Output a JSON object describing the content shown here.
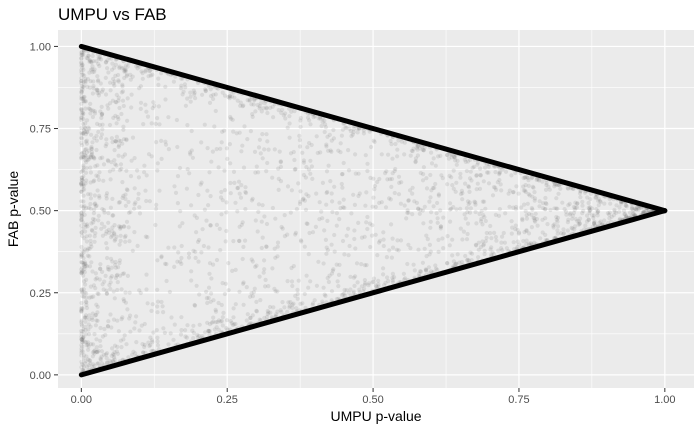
{
  "chart_data": {
    "type": "scatter",
    "title": "UMPU vs FAB",
    "xlabel": "UMPU p-value",
    "ylabel": "FAB p-value",
    "xlim": [
      -0.04,
      1.05
    ],
    "ylim": [
      -0.04,
      1.05
    ],
    "x_ticks": [
      0.0,
      0.25,
      0.5,
      0.75,
      1.0
    ],
    "x_tick_labels": [
      "0.00",
      "0.25",
      "0.50",
      "0.75",
      "1.00"
    ],
    "y_ticks": [
      0.0,
      0.25,
      0.5,
      0.75,
      1.0
    ],
    "y_tick_labels": [
      "0.00",
      "0.25",
      "0.50",
      "0.75",
      "1.00"
    ],
    "grid": true,
    "panel_background": "#ebebeb",
    "grid_color": "#ffffff",
    "point_color": "#6e6e6e",
    "point_alpha": 0.15,
    "line_color": "#000000",
    "lines": [
      {
        "x": [
          0,
          1
        ],
        "y": [
          1,
          0.5
        ]
      },
      {
        "x": [
          0,
          1
        ],
        "y": [
          0,
          0.5
        ]
      }
    ],
    "points_description_region": "points fill the triangle bounded by the two lines, densest along the edges and near x = 0"
  }
}
